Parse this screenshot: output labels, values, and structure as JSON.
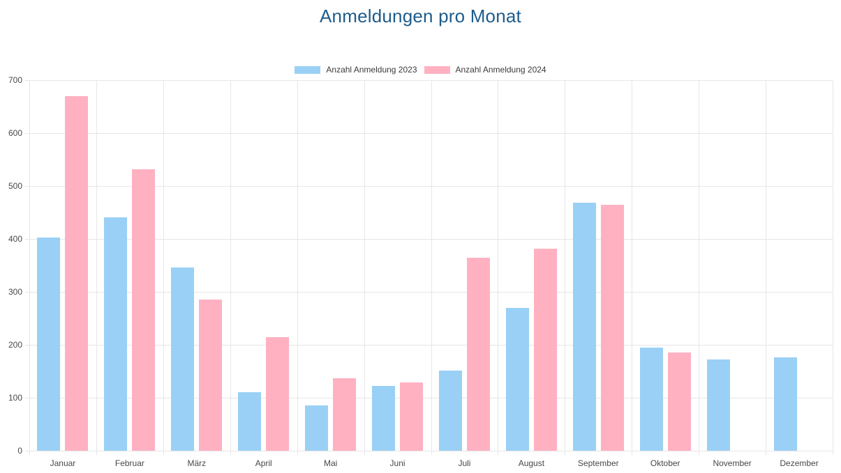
{
  "chart_data": {
    "type": "bar",
    "title": "Anmeldungen pro Monat",
    "title_color": "#1e5c8c",
    "categories": [
      "Januar",
      "Februar",
      "März",
      "April",
      "Mai",
      "Juni",
      "Juli",
      "August",
      "September",
      "Oktober",
      "November",
      "Dezember"
    ],
    "series": [
      {
        "name": "Anzahl Anmeldung 2023",
        "color": "#9ad0f5",
        "values": [
          403,
          441,
          346,
          110,
          85,
          122,
          151,
          270,
          469,
          195,
          173,
          176
        ]
      },
      {
        "name": "Anzahl Anmeldung 2024",
        "color": "#ffb1c2",
        "values": [
          670,
          532,
          286,
          214,
          137,
          129,
          365,
          381,
          465,
          185,
          null,
          null
        ]
      }
    ],
    "xlabel": "",
    "ylabel": "",
    "ylim": [
      0,
      700
    ],
    "yticks": [
      0,
      100,
      200,
      300,
      400,
      500,
      600,
      700
    ],
    "grid": true,
    "grid_color": "#e6e6e6",
    "legend_position": "top"
  }
}
